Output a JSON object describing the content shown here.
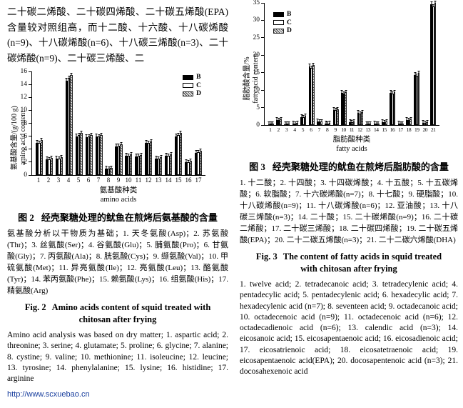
{
  "intro_paragraph": "二十碳二烯酸、二十碳四烯酸、二十碳五烯酸(EPA)含量较对照组高，而十二酸、十六酸、十八碳烯酸(n=9)、十八碳烯酸(n=6)、十八碳三烯酸(n=3)、二十碳烯酸(n=9)、二十碳三烯酸、二",
  "footer_url": "http://www.scxuebao.cn",
  "colors": {
    "link_blue": "#1a3f9e",
    "bar_b": "#000000",
    "bar_c": "#ffffff",
    "bar_d_hatch": "#3a3a3a"
  },
  "figure2": {
    "caption_cn_label": "图 2",
    "caption_cn_text": "经壳聚糖处理的鱿鱼在煎烤后氨基酸的含量",
    "notes_cn": "氨基酸分析以干物质为基础；1. 天冬氨酸(Asp)；2. 苏氨酸(Thr)；3. 丝氨酸(Ser)；4. 谷氨酸(Glu)；5. 脯氨酸(Pro)；6. 甘氨酸(Gly)；7. 丙氨酸(Ala)；8. 胱氨酸(Cys)；9. 缬氨酸(Val)；10. 甲硫氨酸(Met)；11. 异亮氨酸(Ile)；12. 亮氨酸(Leu)；13. 酪氨酸(Tyr)；14. 苯丙氨酸(Phe)；15. 赖氨酸(Lys)；16. 组氨酸(His)；17. 精氨酸(Arg)",
    "caption_en_label": "Fig. 2",
    "caption_en_text": "Amino acids content of squid treated with chitosan after frying",
    "notes_en": "Amino acid analysis was based on dry matter; 1. aspartic acid; 2. threonine; 3. serine; 4. glutamate; 5. proline; 6. glycine; 7. alanine; 8. cystine; 9. valine; 10. methionine; 11. isoleucine; 12. leucine; 13. tyrosine; 14. phenylalanine; 15. lysine; 16. histidine; 17. arginine"
  },
  "figure3": {
    "caption_cn_label": "图 3",
    "caption_cn_text": "经壳聚糖处理的鱿鱼在煎烤后脂肪酸的含量",
    "notes_cn": "1. 十二酸；2. 十四酸；3. 十四碳烯酸；4. 十五酸；5. 十五碳烯酸；6. 软脂酸；7. 十六碳烯酸(n=7)；8. 十七酸；9. 硬脂酸；10. 十八碳烯酸(n=9)；11. 十八碳烯酸(n=6)；12. 亚油酸；13. 十八碳三烯酸(n=3)；14. 二十酸；15. 二十碳烯酸(n=9)；16. 二十碳二烯酸；17. 二十碳三烯酸；18. 二十碳四烯酸；19. 二十碳五烯酸(EPA)；20. 二十二碳五烯酸(n=3)；21. 二十二碳六烯酸(DHA)",
    "caption_en_label": "Fig. 3",
    "caption_en_text": "The content of fatty acids in squid treated with chitosan after frying",
    "notes_en": "1. twelve acid; 2. tetradecanoic acid; 3. tetradecylenic acid; 4. pentadecylic acid; 5. pentadecylenic acid; 6. hexadecylic acid; 7. hexadecylenic acid (n=7); 8. seventeen acid; 9. octadecanoic acid; 10. octadecenoic acid (n=9); 11. octadecenoic acid (n=6); 12. octadecadienoic acid (n=6); 13. calendic acid (n=3); 14. eicosanoic acid; 15. eicosapentaenoic acid; 16. eicosadienoic acid; 17. eicosatrienoic acid; 18. eicosatetraenoic acid; 19. eicosapentaenoic acid(EPA); 20. docosapentenoic acid (n=3); 21. docosahexenoic acid"
  },
  "chart_data": [
    {
      "id": "fig2",
      "type": "bar",
      "title": "图2 经壳聚糖处理的鱿鱼在煎烤后氨基酸的含量",
      "categories": [
        "1",
        "2",
        "3",
        "4",
        "5",
        "6",
        "7",
        "8",
        "9",
        "10",
        "11",
        "12",
        "13",
        "14",
        "15",
        "16",
        "17"
      ],
      "series": [
        {
          "name": "B",
          "values": [
            5.0,
            2.4,
            2.5,
            14.6,
            6.0,
            5.9,
            6.0,
            1.0,
            4.4,
            3.0,
            2.9,
            5.0,
            2.5,
            3.0,
            6.0,
            2.0,
            3.4
          ]
        },
        {
          "name": "C",
          "values": [
            5.0,
            2.4,
            2.5,
            15.0,
            6.2,
            6.0,
            6.0,
            1.0,
            4.5,
            3.0,
            3.0,
            5.0,
            2.5,
            3.0,
            6.2,
            2.0,
            3.5
          ]
        },
        {
          "name": "D",
          "values": [
            5.4,
            2.7,
            2.8,
            15.4,
            6.5,
            6.2,
            6.2,
            1.1,
            4.7,
            3.2,
            3.1,
            5.2,
            2.8,
            3.2,
            6.5,
            2.2,
            3.7
          ]
        }
      ],
      "ylabel_cn": "氨基酸含量/(g/100 g)",
      "ylabel_en": "amino acid content",
      "xlabel_cn": "氨基酸种类",
      "xlabel_en": "amino acids",
      "ylim": [
        0,
        16
      ],
      "yticks": [
        0,
        2,
        4,
        6,
        8,
        10,
        12,
        14,
        16
      ],
      "legend": [
        "B",
        "C",
        "D"
      ],
      "legend_position": "top-right",
      "grid": false
    },
    {
      "id": "fig3",
      "type": "bar",
      "title": "图3 经壳聚糖处理的鱿鱼在煎烤后脂肪酸的含量",
      "categories": [
        "1",
        "2",
        "3",
        "4",
        "5",
        "6",
        "7",
        "8",
        "9",
        "10",
        "11",
        "12",
        "13",
        "14",
        "15",
        "16",
        "17",
        "18",
        "19",
        "20",
        "21"
      ],
      "series": [
        {
          "name": "B",
          "values": [
            0.3,
            1.4,
            0.3,
            0.5,
            2.3,
            16.8,
            1.0,
            0.5,
            4.4,
            9.2,
            0.9,
            3.4,
            0.3,
            0.4,
            0.9,
            9.2,
            0.4,
            1.4,
            14.4,
            0.7,
            34.5
          ]
        },
        {
          "name": "C",
          "values": [
            0.3,
            1.4,
            0.3,
            0.5,
            2.3,
            16.4,
            1.0,
            0.5,
            4.3,
            9.0,
            0.9,
            3.3,
            0.3,
            0.4,
            0.9,
            9.0,
            0.4,
            1.4,
            14.2,
            0.7,
            34.0
          ]
        },
        {
          "name": "D",
          "values": [
            0.4,
            1.6,
            0.4,
            0.6,
            2.6,
            17.2,
            1.1,
            0.6,
            4.6,
            9.5,
            1.0,
            3.6,
            0.4,
            0.5,
            1.0,
            9.5,
            0.5,
            1.6,
            15.0,
            0.8,
            35.0
          ]
        }
      ],
      "ylabel_cn": "脂肪酸含量/%",
      "ylabel_en": "fatty acid content",
      "xlabel_cn": "脂肪酸种类",
      "xlabel_en": "fatty acids",
      "ylim": [
        0,
        35
      ],
      "yticks": [
        0,
        5,
        10,
        15,
        20,
        25,
        30,
        35
      ],
      "legend": [
        "B",
        "C",
        "D"
      ],
      "legend_position": "top-left",
      "grid": false
    }
  ]
}
